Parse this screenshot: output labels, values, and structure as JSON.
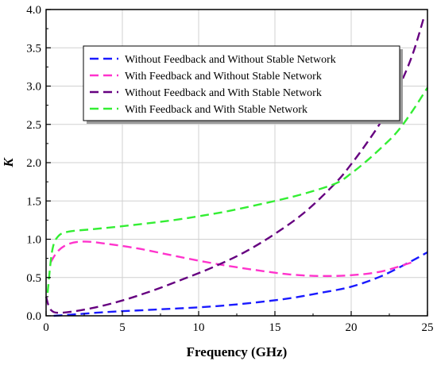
{
  "chart_data": {
    "type": "line",
    "xlabel": "Frequency (GHz)",
    "ylabel": "K",
    "xlim": [
      0,
      25
    ],
    "ylim": [
      0,
      4
    ],
    "x_ticks": [
      "0",
      "5",
      "10",
      "15",
      "20",
      "25"
    ],
    "y_ticks": [
      "0.0",
      "0.5",
      "1.0",
      "1.5",
      "2.0",
      "2.5",
      "3.0",
      "3.5",
      "4.0"
    ],
    "grid": true,
    "legend_position": "top-center",
    "series": [
      {
        "name": "Without Feedback and Without Stable Network",
        "color": "#1a1aff",
        "dash": "dashed",
        "x": [
          0.5,
          2,
          4,
          6,
          8,
          10,
          12,
          14,
          16,
          18,
          20,
          22,
          24,
          25
        ],
        "y": [
          0.0,
          0.02,
          0.05,
          0.07,
          0.09,
          0.11,
          0.14,
          0.18,
          0.23,
          0.3,
          0.38,
          0.52,
          0.72,
          0.83
        ]
      },
      {
        "name": "With Feedback and Without Stable Network",
        "color": "#ff33cc",
        "dash": "dashed",
        "x": [
          0.3,
          0.8,
          1.5,
          2.5,
          4,
          6,
          8,
          10,
          12,
          14,
          16,
          18,
          20,
          22,
          24
        ],
        "y": [
          0.7,
          0.85,
          0.94,
          0.97,
          0.94,
          0.88,
          0.8,
          0.72,
          0.65,
          0.59,
          0.54,
          0.52,
          0.53,
          0.58,
          0.7
        ]
      },
      {
        "name": "Without Feedback and With Stable Network",
        "color": "#660080",
        "dash": "dashed",
        "x": [
          0,
          0.3,
          1,
          3,
          5,
          7,
          9,
          11,
          13,
          15,
          17,
          19,
          20,
          21,
          22,
          23,
          24,
          24.8
        ],
        "y": [
          0.25,
          0.08,
          0.04,
          0.1,
          0.2,
          0.33,
          0.48,
          0.64,
          0.83,
          1.07,
          1.36,
          1.74,
          1.98,
          2.25,
          2.55,
          2.93,
          3.4,
          3.92
        ]
      },
      {
        "name": "With Feedback and With Stable Network",
        "color": "#33ee33",
        "dash": "dashed",
        "x": [
          0.1,
          0.4,
          0.8,
          1.5,
          3,
          5,
          8,
          10,
          12,
          15,
          17,
          19,
          20,
          21,
          22,
          23,
          24,
          25
        ],
        "y": [
          0.3,
          0.85,
          1.04,
          1.1,
          1.13,
          1.17,
          1.24,
          1.3,
          1.37,
          1.5,
          1.6,
          1.73,
          1.86,
          2.02,
          2.2,
          2.4,
          2.67,
          2.98
        ]
      }
    ]
  }
}
